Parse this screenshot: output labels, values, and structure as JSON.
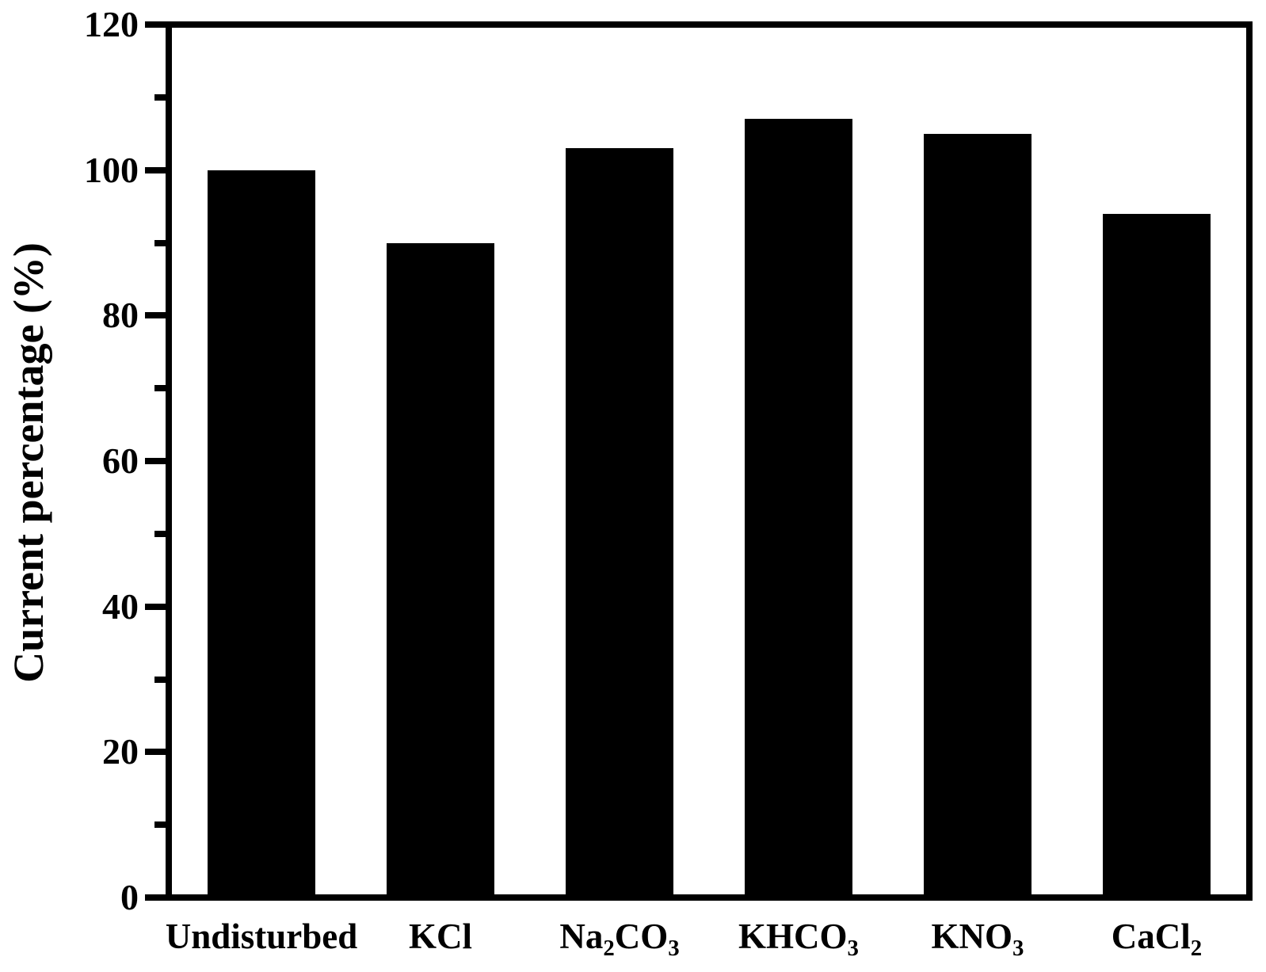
{
  "figure": {
    "background_color": "#ffffff",
    "foreground_color": "#000000"
  },
  "chart_data": {
    "type": "bar",
    "title": "",
    "xlabel": "",
    "ylabel": "Current percentage (%)",
    "categories": [
      "Undisturbed",
      "KCl",
      "Na2CO3",
      "KHCO3",
      "KNO3",
      "CaCl2"
    ],
    "categories_rich": [
      [
        {
          "text": "Undisturbed",
          "sub": false
        }
      ],
      [
        {
          "text": "KCl",
          "sub": false
        }
      ],
      [
        {
          "text": "Na",
          "sub": false
        },
        {
          "text": "2",
          "sub": true
        },
        {
          "text": "CO",
          "sub": false
        },
        {
          "text": "3",
          "sub": true
        }
      ],
      [
        {
          "text": "KHCO",
          "sub": false
        },
        {
          "text": "3",
          "sub": true
        }
      ],
      [
        {
          "text": "KNO",
          "sub": false
        },
        {
          "text": "3",
          "sub": true
        }
      ],
      [
        {
          "text": "CaCl",
          "sub": false
        },
        {
          "text": "2",
          "sub": true
        }
      ]
    ],
    "values": [
      100,
      90,
      103,
      107,
      105,
      94
    ],
    "ylim": [
      0,
      120
    ],
    "yticks_major": [
      0,
      20,
      40,
      60,
      80,
      100,
      120
    ],
    "yticks_minor": [
      10,
      30,
      50,
      70,
      90,
      110
    ],
    "bar_color": "#000000",
    "bar_width_fraction": 0.6,
    "grid": false,
    "legend": null,
    "frame": true,
    "tick_direction": "out"
  }
}
